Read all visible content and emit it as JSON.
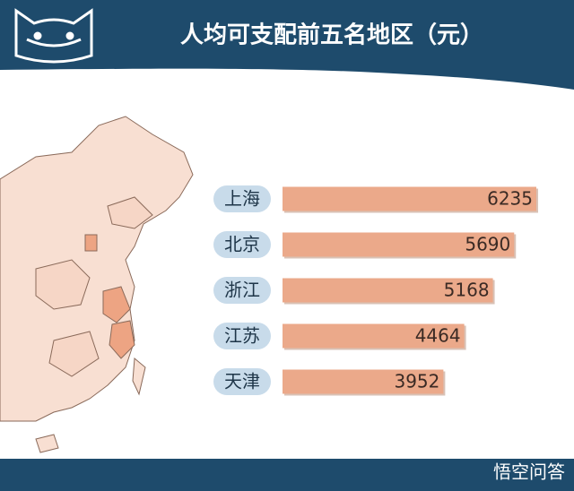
{
  "chart_data": {
    "type": "bar",
    "orientation": "horizontal",
    "title": "人均可支配前五名地区（元）",
    "categories": [
      "上海",
      "北京",
      "浙江",
      "江苏",
      "天津"
    ],
    "values": [
      6235,
      5690,
      5168,
      4464,
      3952
    ],
    "color": "#eba98a"
  },
  "watermark": "悟空问答"
}
